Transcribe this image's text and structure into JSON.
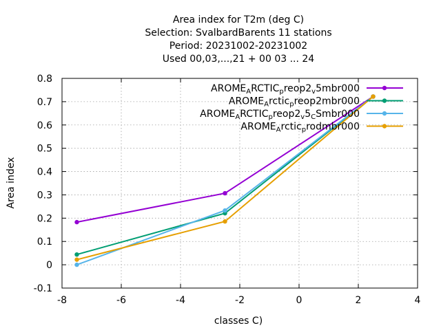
{
  "chart_data": {
    "type": "line",
    "title_lines": [
      "Area index  for T2m (deg C)",
      "Selection: SvalbardBarents     11 stations",
      "Period: 20231002-20231002",
      "Used  00,03,...,21  + 00 03 ... 24"
    ],
    "xlabel": "classes C)",
    "ylabel": "Area index",
    "xlim": [
      -8,
      4
    ],
    "ylim": [
      -0.1,
      0.8
    ],
    "xticks": [
      -8,
      -6,
      -4,
      -2,
      0,
      2,
      4
    ],
    "xtick_labels": [
      "-8",
      "-6",
      "-4",
      "-2",
      "0",
      "2",
      "4"
    ],
    "yticks": [
      -0.1,
      0,
      0.1,
      0.2,
      0.3,
      0.4,
      0.5,
      0.6,
      0.7,
      0.8
    ],
    "ytick_labels": [
      "-0.1",
      "0",
      "0.1",
      "0.2",
      "0.3",
      "0.4",
      "0.5",
      "0.6",
      "0.7",
      "0.8"
    ],
    "grid": true,
    "legend_position": "top-right",
    "series": [
      {
        "label_parts": [
          [
            "AROME",
            "n"
          ],
          [
            "A",
            "sub"
          ],
          [
            "RCTIC",
            "n"
          ],
          [
            "p",
            "sub"
          ],
          [
            "reop2",
            "n"
          ],
          [
            "v",
            "sub"
          ],
          [
            "5mbr000",
            "n"
          ]
        ],
        "color": "#9400d3",
        "x": [
          -7.5,
          -2.5,
          2.5
        ],
        "y": [
          0.183,
          0.307,
          0.722
        ]
      },
      {
        "label_parts": [
          [
            "AROME",
            "n"
          ],
          [
            "A",
            "sub"
          ],
          [
            "rctic",
            "n"
          ],
          [
            "p",
            "sub"
          ],
          [
            "reop2mbr000",
            "n"
          ]
        ],
        "color": "#009e73",
        "x": [
          -7.5,
          -2.5,
          2.5
        ],
        "y": [
          0.044,
          0.221,
          0.722
        ]
      },
      {
        "label_parts": [
          [
            "AROME",
            "n"
          ],
          [
            "A",
            "sub"
          ],
          [
            "RCTIC",
            "n"
          ],
          [
            "p",
            "sub"
          ],
          [
            "reop2",
            "n"
          ],
          [
            "v",
            "sub"
          ],
          [
            "5",
            "n"
          ],
          [
            "C",
            "sub"
          ],
          [
            "Smbr000",
            "n"
          ]
        ],
        "color": "#56b4e9",
        "x": [
          -7.5,
          -2.5,
          2.5
        ],
        "y": [
          0.0,
          0.233,
          0.722
        ]
      },
      {
        "label_parts": [
          [
            "AROME",
            "n"
          ],
          [
            "A",
            "sub"
          ],
          [
            "rctic",
            "n"
          ],
          [
            "p",
            "sub"
          ],
          [
            "rodmbr000",
            "n"
          ]
        ],
        "color": "#e69f00",
        "x": [
          -7.5,
          -2.5,
          2.5
        ],
        "y": [
          0.022,
          0.186,
          0.722
        ]
      }
    ]
  }
}
